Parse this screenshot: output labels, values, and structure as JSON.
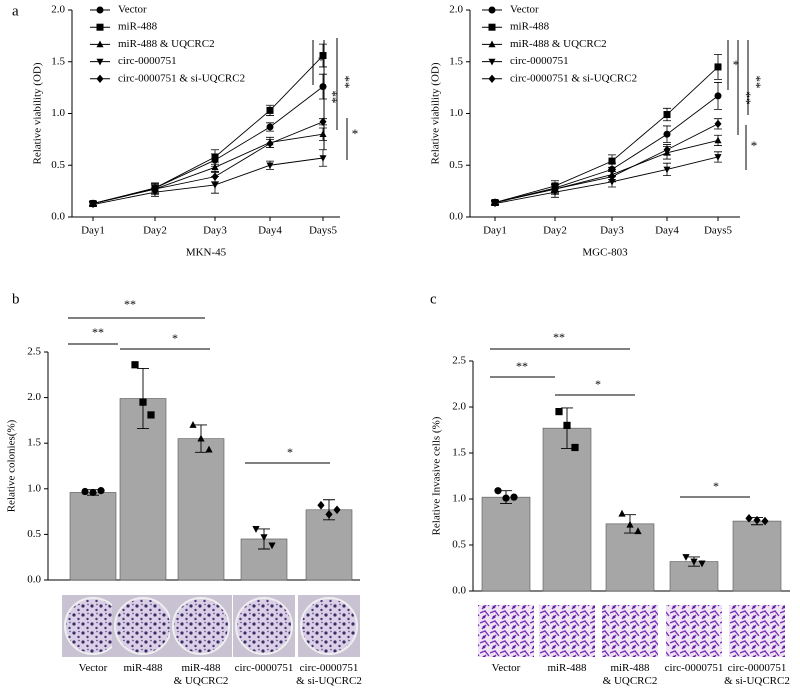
{
  "chart_data": [
    {
      "type": "line",
      "panel_label": "a",
      "xlabel": "MKN-45",
      "ylabel": "Relative viability (OD)",
      "categories": [
        "Day1",
        "Day2",
        "Day3",
        "Day4",
        "Days5"
      ],
      "ylim": [
        0,
        2
      ],
      "yticks": [
        {
          "value": 0,
          "label": "0.0"
        },
        0.5,
        {
          "value": 1,
          "label": "1.0"
        },
        1.5,
        {
          "value": 2,
          "label": "2.0"
        }
      ],
      "series": [
        {
          "name": "Vector",
          "color": "#000000",
          "marker": "circle",
          "values": [
            0.13,
            0.28,
            0.55,
            0.87,
            1.26
          ],
          "errors": [
            0.02,
            0.05,
            0.06,
            0.04,
            0.12
          ]
        },
        {
          "name": "miR-488",
          "color": "#000000",
          "marker": "square",
          "values": [
            0.13,
            0.28,
            0.58,
            1.03,
            1.56
          ],
          "errors": [
            0.02,
            0.05,
            0.07,
            0.05,
            0.11
          ]
        },
        {
          "name": "miR-488 & UQCRC2",
          "color": "#000000",
          "marker": "triangle",
          "values": [
            0.13,
            0.27,
            0.48,
            0.72,
            0.8
          ],
          "errors": [
            0.02,
            0.04,
            0.05,
            0.05,
            0.06
          ]
        },
        {
          "name": "circ-0000751",
          "color": "#000000",
          "marker": "triangle-down",
          "values": [
            0.12,
            0.24,
            0.31,
            0.5,
            0.57
          ],
          "errors": [
            0.02,
            0.04,
            0.08,
            0.04,
            0.08
          ]
        },
        {
          "name": "circ-0000751 & si-UQCRC2",
          "color": "#000000",
          "marker": "diamond",
          "values": [
            0.13,
            0.27,
            0.39,
            0.71,
            0.92
          ],
          "errors": [
            0.02,
            0.05,
            0.05,
            0.04,
            0.03
          ]
        }
      ],
      "annotations": [
        "*",
        "**",
        "**",
        "*"
      ]
    },
    {
      "type": "line",
      "xlabel": "MGC-803",
      "ylabel": "Relative viability (OD)",
      "categories": [
        "Day1",
        "Day2",
        "Day3",
        "Day4",
        "Days5"
      ],
      "ylim": [
        0,
        2
      ],
      "yticks": [
        {
          "value": 0,
          "label": "0.0"
        },
        0.5,
        {
          "value": 1,
          "label": "1.0"
        },
        1.5,
        {
          "value": 2,
          "label": "2.0"
        }
      ],
      "series": [
        {
          "name": "Vector",
          "color": "#000000",
          "marker": "circle",
          "values": [
            0.14,
            0.28,
            0.46,
            0.8,
            1.17
          ],
          "errors": [
            0.02,
            0.04,
            0.06,
            0.08,
            0.13
          ]
        },
        {
          "name": "miR-488",
          "color": "#000000",
          "marker": "square",
          "values": [
            0.14,
            0.3,
            0.54,
            0.99,
            1.45
          ],
          "errors": [
            0.02,
            0.05,
            0.06,
            0.06,
            0.12
          ]
        },
        {
          "name": "miR-488 & UQCRC2",
          "color": "#000000",
          "marker": "triangle",
          "values": [
            0.14,
            0.27,
            0.41,
            0.62,
            0.74
          ],
          "errors": [
            0.02,
            0.04,
            0.05,
            0.06,
            0.05
          ]
        },
        {
          "name": "circ-0000751",
          "color": "#000000",
          "marker": "triangle-down",
          "values": [
            0.13,
            0.24,
            0.34,
            0.46,
            0.58
          ],
          "errors": [
            0.02,
            0.05,
            0.05,
            0.06,
            0.05
          ]
        },
        {
          "name": "circ-0000751 & si-UQCRC2",
          "color": "#000000",
          "marker": "diamond",
          "values": [
            0.14,
            0.27,
            0.39,
            0.65,
            0.9
          ],
          "errors": [
            0.02,
            0.05,
            0.05,
            0.05,
            0.05
          ]
        }
      ],
      "annotations": [
        "*",
        "**",
        "**",
        "*"
      ]
    },
    {
      "type": "bar",
      "panel_label": "b",
      "ylabel": "Relative colonies(%)",
      "categories": [
        "Vector",
        "miR-488",
        "miR-488\n& UQCRC2",
        "circ-0000751",
        "circ-0000751\n& si-UQCRC2"
      ],
      "values": [
        0.96,
        1.99,
        1.55,
        0.45,
        0.77
      ],
      "errors": [
        0.03,
        0.33,
        0.15,
        0.11,
        0.11
      ],
      "points": [
        [
          0.97,
          0.96,
          0.98
        ],
        [
          2.36,
          1.95,
          1.81
        ],
        [
          1.7,
          1.55,
          1.43
        ],
        [
          0.56,
          0.47,
          0.38
        ],
        [
          0.82,
          0.72,
          0.77
        ]
      ],
      "markers": [
        "circle",
        "square",
        "triangle",
        "triangle-down",
        "diamond"
      ],
      "color": "#a6a6a6",
      "ylim": [
        0,
        2.5
      ],
      "yticks": [
        {
          "value": 0,
          "label": "0.0"
        },
        0.5,
        {
          "value": 1,
          "label": "1.0"
        },
        1.5,
        {
          "value": 2,
          "label": "2.0"
        },
        2.5
      ],
      "annotations": [
        "**",
        "**",
        "*",
        "*"
      ]
    },
    {
      "type": "bar",
      "panel_label": "c",
      "ylabel": "Relative Invasive cells (%)",
      "categories": [
        "Vector",
        "miR-488",
        "miR-488\n& UQCRC2",
        "circ-0000751",
        "circ-0000751\n& si-UQCRC2"
      ],
      "values": [
        1.02,
        1.77,
        0.73,
        0.32,
        0.76
      ],
      "errors": [
        0.07,
        0.22,
        0.1,
        0.05,
        0.04
      ],
      "points": [
        [
          1.09,
          1.01,
          1.02
        ],
        [
          1.95,
          1.8,
          1.56
        ],
        [
          0.84,
          0.72,
          0.65
        ],
        [
          0.37,
          0.32,
          0.3
        ],
        [
          0.79,
          0.77,
          0.76
        ]
      ],
      "markers": [
        "circle",
        "square",
        "triangle",
        "triangle-down",
        "diamond"
      ],
      "color": "#a6a6a6",
      "ylim": [
        0,
        2.5
      ],
      "yticks": [
        {
          "value": 0,
          "label": "0.0"
        },
        0.5,
        {
          "value": 1,
          "label": "1.0"
        },
        1.5,
        {
          "value": 2,
          "label": "2.0"
        },
        2.5
      ],
      "annotations": [
        "**",
        "**",
        "*",
        "*"
      ]
    }
  ]
}
